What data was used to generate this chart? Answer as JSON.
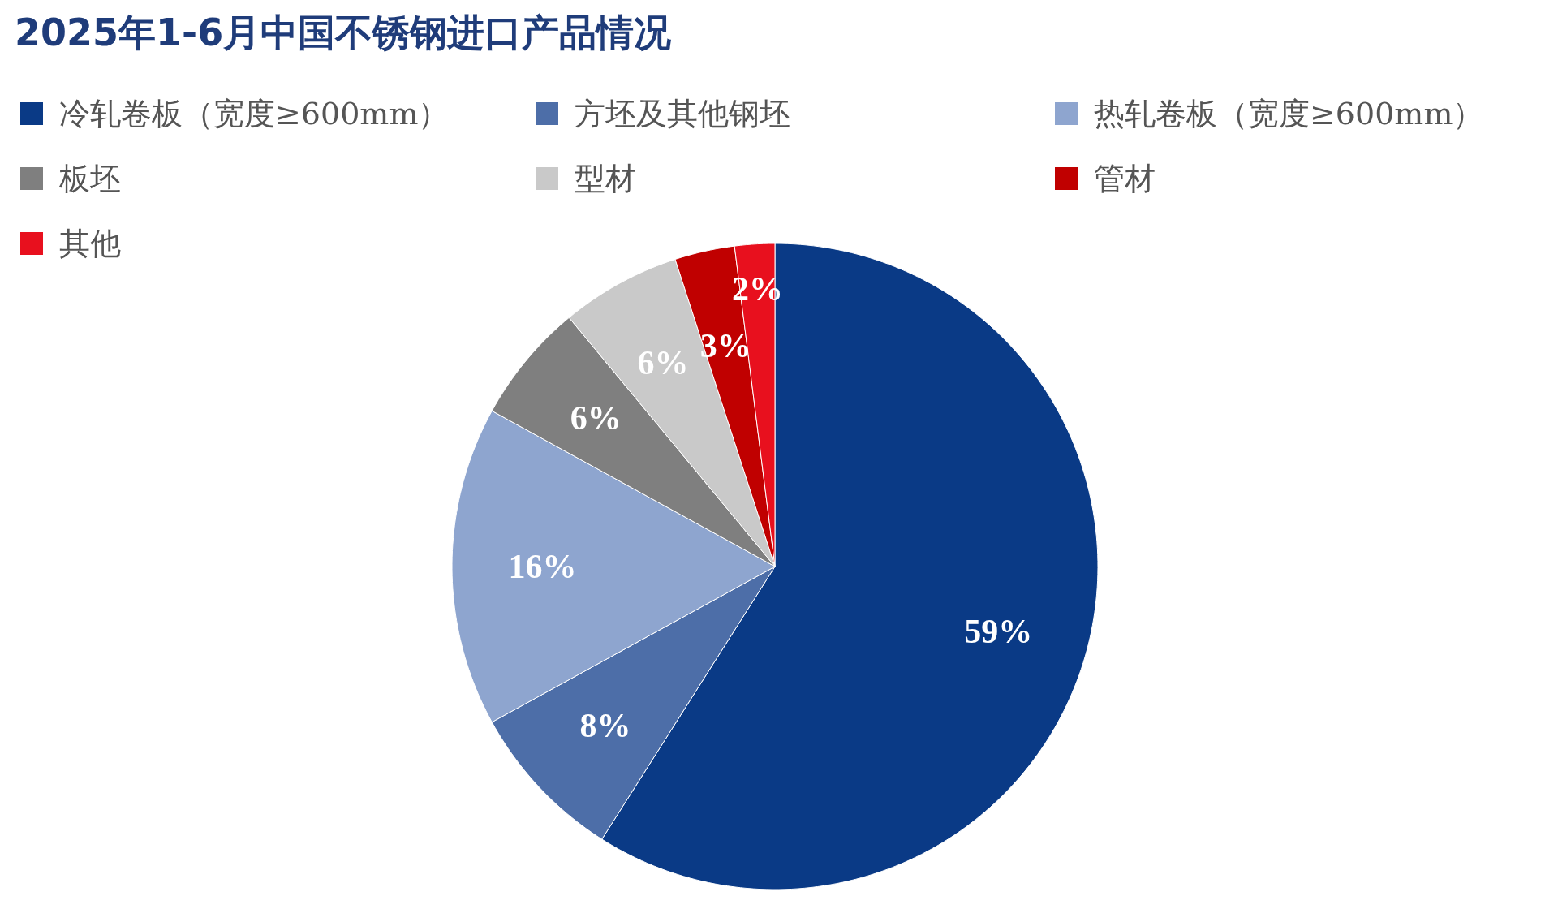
{
  "chart_data": {
    "type": "pie",
    "title": "2025年1-6月中国不锈钢进口产品情况",
    "categories": [
      "冷轧卷板（宽度≥600mm）",
      "方坯及其他钢坯",
      "热轧卷板（宽度≥600mm）",
      "板坯",
      "型材",
      "管材",
      "其他"
    ],
    "values": [
      59,
      8,
      16,
      6,
      6,
      3,
      2
    ],
    "value_labels": [
      "59%",
      "8%",
      "16%",
      "6%",
      "6%",
      "3%",
      "2%"
    ],
    "colors": [
      "#0a3a86",
      "#4d6ea8",
      "#8ea5cf",
      "#7f7f7f",
      "#c9c9c9",
      "#c00000",
      "#e8101e"
    ],
    "legend": "top"
  }
}
